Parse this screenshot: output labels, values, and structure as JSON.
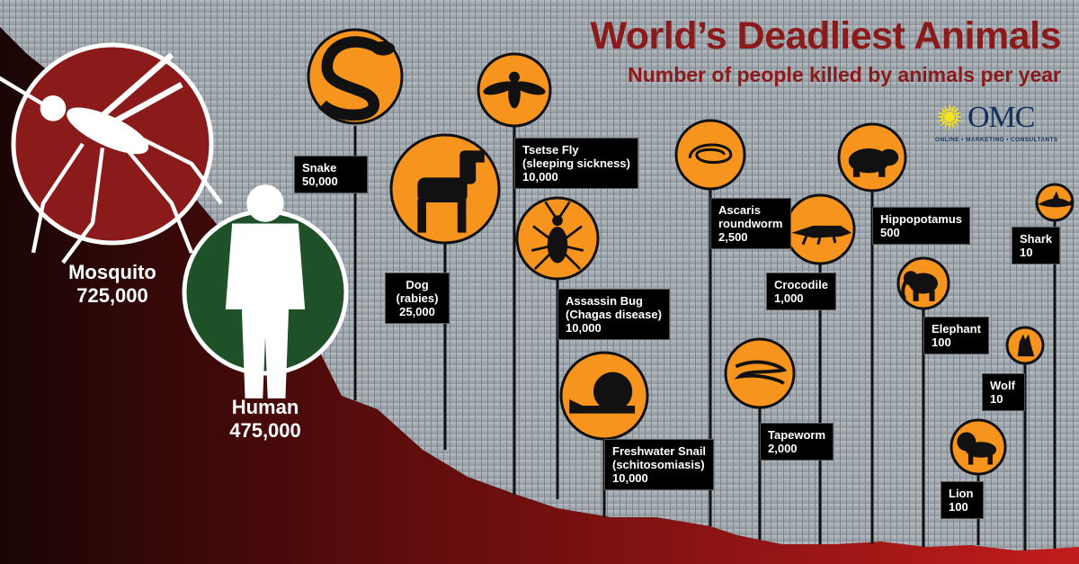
{
  "chart_data": {
    "type": "bar",
    "title": "World’s Deadliest Animals",
    "subtitle": "Number of people killed by animals per year",
    "categories": [
      "Mosquito",
      "Human",
      "Snake",
      "Dog",
      "Tsetse Fly",
      "Assassin Bug",
      "Freshwater Snail",
      "Ascaris roundworm",
      "Tapeworm",
      "Crocodile",
      "Hippopotamus",
      "Elephant",
      "Lion",
      "Wolf",
      "Shark"
    ],
    "values": [
      725000,
      475000,
      50000,
      25000,
      10000,
      10000,
      10000,
      2500,
      2000,
      1000,
      500,
      100,
      100,
      10,
      10
    ],
    "items": [
      {
        "name": "Mosquito",
        "note": "",
        "value_text": "725,000",
        "icon": "mosquito-icon",
        "circle_color": "#8b1a1a"
      },
      {
        "name": "Human",
        "note": "",
        "value_text": "475,000",
        "icon": "human-icon",
        "circle_color": "#1e5128"
      },
      {
        "name": "Snake",
        "note": "",
        "value_text": "50,000",
        "icon": "snake-icon",
        "circle_color": "#f7941d"
      },
      {
        "name": "Dog",
        "note": "(rabies)",
        "value_text": "25,000",
        "icon": "dog-icon",
        "circle_color": "#f7941d"
      },
      {
        "name": "Tsetse Fly",
        "note": "(sleeping sickness)",
        "value_text": "10,000",
        "icon": "fly-icon",
        "circle_color": "#f7941d"
      },
      {
        "name": "Assassin Bug",
        "note": "(Chagas disease)",
        "value_text": "10,000",
        "icon": "bug-icon",
        "circle_color": "#f7941d"
      },
      {
        "name": "Freshwater Snail",
        "note": "(schitosomiasis)",
        "value_text": "10,000",
        "icon": "snail-icon",
        "circle_color": "#f7941d"
      },
      {
        "name": "Ascaris",
        "note": "roundworm",
        "value_text": "2,500",
        "icon": "roundworm-icon",
        "circle_color": "#f7941d"
      },
      {
        "name": "Tapeworm",
        "note": "",
        "value_text": "2,000",
        "icon": "tapeworm-icon",
        "circle_color": "#f7941d"
      },
      {
        "name": "Crocodile",
        "note": "",
        "value_text": "1,000",
        "icon": "crocodile-icon",
        "circle_color": "#f7941d"
      },
      {
        "name": "Hippopotamus",
        "note": "",
        "value_text": "500",
        "icon": "hippo-icon",
        "circle_color": "#f7941d"
      },
      {
        "name": "Elephant",
        "note": "",
        "value_text": "100",
        "icon": "elephant-icon",
        "circle_color": "#f7941d"
      },
      {
        "name": "Lion",
        "note": "",
        "value_text": "100",
        "icon": "lion-icon",
        "circle_color": "#f7941d"
      },
      {
        "name": "Wolf",
        "note": "",
        "value_text": "10",
        "icon": "wolf-icon",
        "circle_color": "#f7941d"
      },
      {
        "name": "Shark",
        "note": "",
        "value_text": "10",
        "icon": "shark-icon",
        "circle_color": "#f7941d"
      }
    ]
  },
  "logo": {
    "text": "OMC",
    "tagline": "ONLINE • MARKETING • CONSULTANTS",
    "icon": "sunburst-icon"
  },
  "colors": {
    "title": "#8b1a1a",
    "orange": "#f7941d",
    "dark_red": "#8b1a1a",
    "green": "#1e5128",
    "background_gray": "#9ea6ad"
  }
}
